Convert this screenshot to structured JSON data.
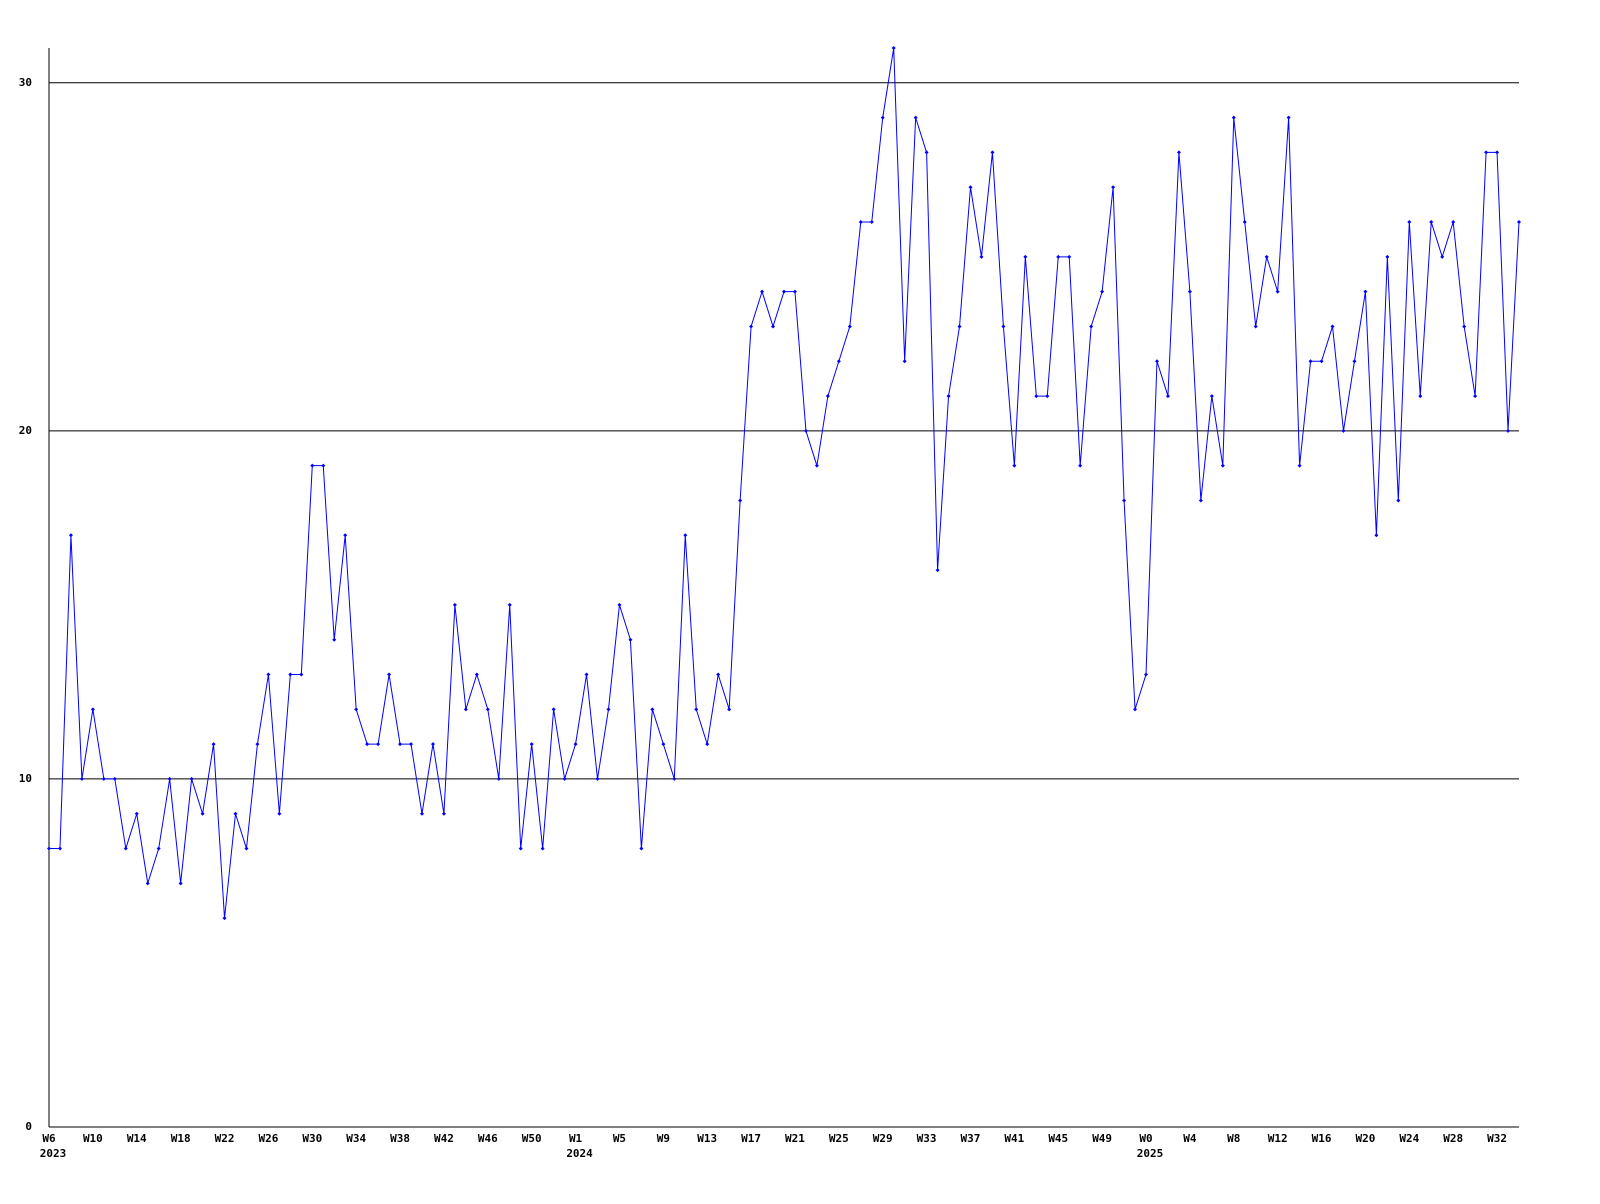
{
  "chart_data": {
    "type": "line",
    "color": "#0000ff",
    "grid": true,
    "ylim": [
      0,
      31
    ],
    "yticks": [
      0,
      10,
      20,
      30
    ],
    "categories": [
      "W6",
      null,
      null,
      null,
      "W10",
      null,
      null,
      null,
      "W14",
      null,
      null,
      null,
      "W18",
      null,
      null,
      null,
      "W22",
      null,
      null,
      null,
      "W26",
      null,
      null,
      null,
      "W30",
      null,
      null,
      null,
      "W34",
      null,
      null,
      null,
      "W38",
      null,
      null,
      null,
      "W42",
      null,
      null,
      null,
      "W46",
      null,
      null,
      null,
      "W50",
      null,
      null,
      null,
      "W1",
      null,
      null,
      null,
      "W5",
      null,
      null,
      null,
      "W9",
      null,
      null,
      null,
      "W13",
      null,
      null,
      null,
      "W17",
      null,
      null,
      null,
      "W21",
      null,
      null,
      null,
      "W25",
      null,
      null,
      null,
      "W29",
      null,
      null,
      null,
      "W33",
      null,
      null,
      null,
      "W37",
      null,
      null,
      null,
      "W41",
      null,
      null,
      null,
      "W45",
      null,
      null,
      null,
      "W49",
      null,
      null,
      null,
      "W0",
      null,
      null,
      null,
      "W4",
      null,
      null,
      null,
      "W8",
      null,
      null,
      null,
      "W12",
      null,
      null,
      null,
      "W16",
      null,
      null,
      null,
      "W20",
      null,
      null,
      null,
      "W24",
      null,
      null,
      null,
      "W28",
      null,
      null,
      null,
      "W32",
      null,
      null
    ],
    "category_years": [
      "2023",
      null,
      null,
      null,
      null,
      null,
      null,
      null,
      null,
      null,
      null,
      null,
      null,
      null,
      null,
      null,
      null,
      null,
      null,
      null,
      null,
      null,
      null,
      null,
      null,
      null,
      null,
      null,
      null,
      null,
      null,
      null,
      null,
      null,
      null,
      null,
      null,
      null,
      null,
      null,
      null,
      null,
      null,
      null,
      null,
      null,
      null,
      null,
      "2024",
      null,
      null,
      null,
      null,
      null,
      null,
      null,
      null,
      null,
      null,
      null,
      null,
      null,
      null,
      null,
      null,
      null,
      null,
      null,
      null,
      null,
      null,
      null,
      null,
      null,
      null,
      null,
      null,
      null,
      null,
      null,
      null,
      null,
      null,
      null,
      null,
      null,
      null,
      null,
      null,
      null,
      null,
      null,
      null,
      null,
      null,
      null,
      null,
      null,
      null,
      null,
      "2025",
      null,
      null,
      null,
      null,
      null,
      null,
      null,
      null,
      null,
      null,
      null,
      null,
      null,
      null,
      null,
      null,
      null,
      null,
      null,
      null,
      null,
      null,
      null,
      null,
      null,
      null,
      null,
      null,
      null,
      null,
      null,
      null,
      null,
      null
    ],
    "values": [
      8,
      8,
      17,
      10,
      12,
      10,
      10,
      8,
      9,
      7,
      8,
      10,
      7,
      10,
      9,
      11,
      6,
      9,
      8,
      11,
      13,
      9,
      13,
      13,
      19,
      19,
      14,
      17,
      12,
      11,
      11,
      13,
      11,
      11,
      9,
      11,
      9,
      15,
      12,
      13,
      12,
      10,
      15,
      8,
      11,
      8,
      12,
      10,
      11,
      13,
      10,
      12,
      15,
      14,
      8,
      12,
      11,
      10,
      17,
      12,
      11,
      13,
      12,
      18,
      23,
      24,
      23,
      24,
      24,
      20,
      19,
      21,
      22,
      23,
      26,
      26,
      29,
      31,
      22,
      29,
      28,
      16,
      21,
      23,
      27,
      25,
      28,
      23,
      19,
      25,
      21,
      21,
      25,
      25,
      19,
      23,
      24,
      27,
      18,
      12,
      13,
      22,
      21,
      28,
      24,
      18,
      21,
      19,
      29,
      26,
      23,
      25,
      24,
      29,
      19,
      22,
      22,
      23,
      20,
      22,
      24,
      17,
      25,
      18,
      26,
      21,
      26,
      25,
      26,
      23,
      21,
      28,
      28,
      20,
      26
    ]
  }
}
